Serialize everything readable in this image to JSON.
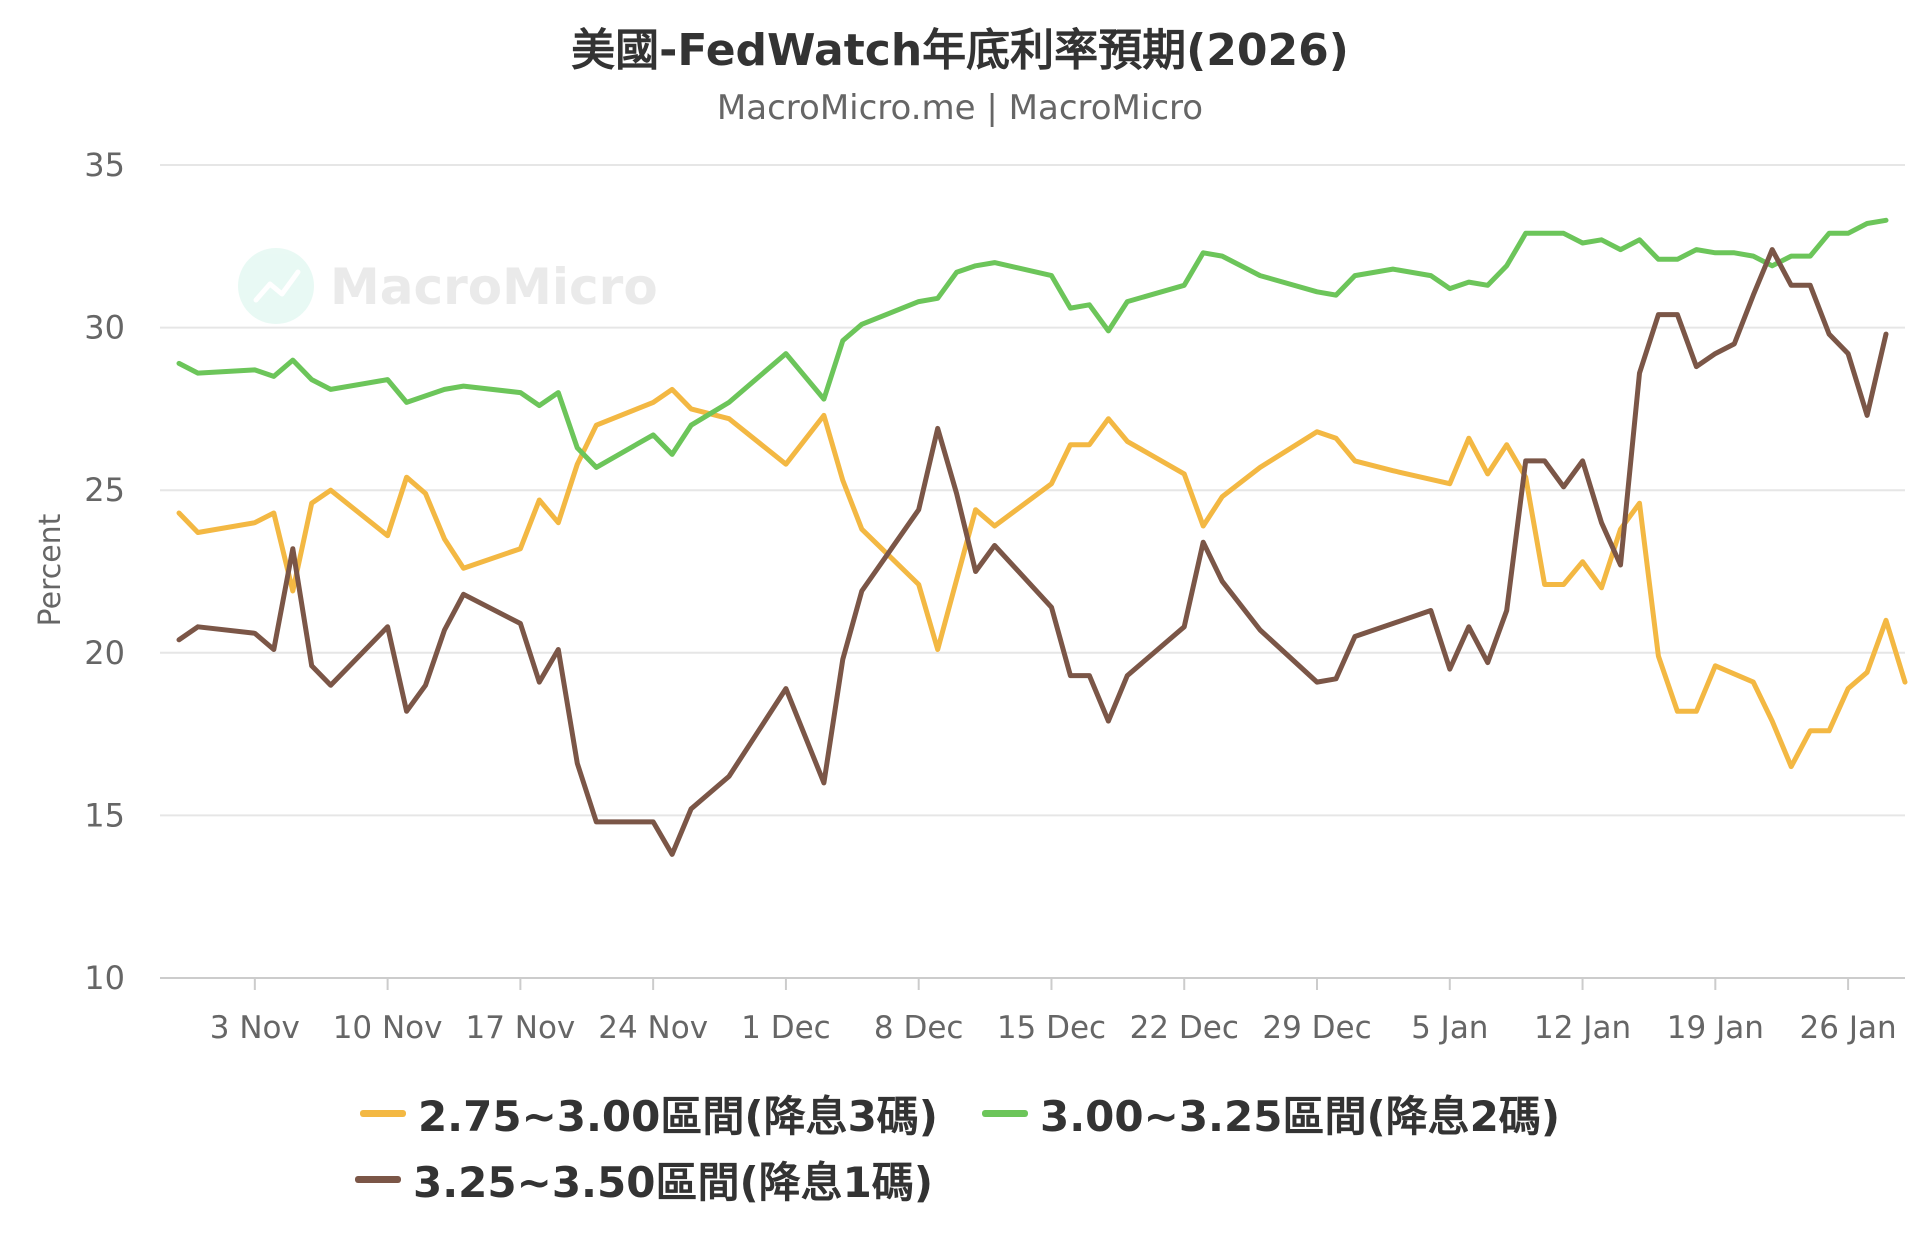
{
  "chart_data": {
    "type": "line",
    "title": "美國-FedWatch年底利率預期(2026)",
    "subtitle": "MacroMicro.me | MacroMicro",
    "watermark": "MacroMicro",
    "ylabel": "Percent",
    "ylim": [
      10,
      35
    ],
    "yticks": [
      10,
      15,
      20,
      25,
      30,
      35
    ],
    "xlim": [
      "2025-10-29",
      "2026-01-29"
    ],
    "xticks": [
      {
        "date": "2025-11-03",
        "label": "3 Nov"
      },
      {
        "date": "2025-11-10",
        "label": "10 Nov"
      },
      {
        "date": "2025-11-17",
        "label": "17 Nov"
      },
      {
        "date": "2025-11-24",
        "label": "24 Nov"
      },
      {
        "date": "2025-12-01",
        "label": "1 Dec"
      },
      {
        "date": "2025-12-08",
        "label": "8 Dec"
      },
      {
        "date": "2025-12-15",
        "label": "15 Dec"
      },
      {
        "date": "2025-12-22",
        "label": "22 Dec"
      },
      {
        "date": "2025-12-29",
        "label": "29 Dec"
      },
      {
        "date": "2026-01-05",
        "label": "5 Jan"
      },
      {
        "date": "2026-01-12",
        "label": "12 Jan"
      },
      {
        "date": "2026-01-19",
        "label": "19 Jan"
      },
      {
        "date": "2026-01-26",
        "label": "26 Jan"
      }
    ],
    "grid": true,
    "legend_position": "bottom",
    "series": [
      {
        "name": "2.75~3.00區間(降息3碼)",
        "color": "#f3b843",
        "points": [
          [
            "2025-10-30",
            24.3
          ],
          [
            "2025-10-31",
            23.7
          ],
          [
            "2025-11-03",
            24.0
          ],
          [
            "2025-11-04",
            24.3
          ],
          [
            "2025-11-05",
            21.9
          ],
          [
            "2025-11-06",
            24.6
          ],
          [
            "2025-11-07",
            25.0
          ],
          [
            "2025-11-10",
            23.6
          ],
          [
            "2025-11-11",
            25.4
          ],
          [
            "2025-11-12",
            24.9
          ],
          [
            "2025-11-13",
            23.5
          ],
          [
            "2025-11-14",
            22.6
          ],
          [
            "2025-11-17",
            23.2
          ],
          [
            "2025-11-18",
            24.7
          ],
          [
            "2025-11-19",
            24.0
          ],
          [
            "2025-11-20",
            25.8
          ],
          [
            "2025-11-21",
            27.0
          ],
          [
            "2025-11-24",
            27.7
          ],
          [
            "2025-11-25",
            28.1
          ],
          [
            "2025-11-26",
            27.5
          ],
          [
            "2025-11-28",
            27.2
          ],
          [
            "2025-12-01",
            25.8
          ],
          [
            "2025-12-03",
            27.3
          ],
          [
            "2025-12-04",
            25.3
          ],
          [
            "2025-12-05",
            23.8
          ],
          [
            "2025-12-08",
            22.1
          ],
          [
            "2025-12-09",
            20.1
          ],
          [
            "2025-12-11",
            24.4
          ],
          [
            "2025-12-12",
            23.9
          ],
          [
            "2025-12-15",
            25.2
          ],
          [
            "2025-12-16",
            26.4
          ],
          [
            "2025-12-17",
            26.4
          ],
          [
            "2025-12-18",
            27.2
          ],
          [
            "2025-12-19",
            26.5
          ],
          [
            "2025-12-22",
            25.5
          ],
          [
            "2025-12-23",
            23.9
          ],
          [
            "2025-12-24",
            24.8
          ],
          [
            "2025-12-26",
            25.7
          ],
          [
            "2025-12-29",
            26.8
          ],
          [
            "2025-12-30",
            26.6
          ],
          [
            "2025-12-31",
            25.9
          ],
          [
            "2026-01-02",
            25.6
          ],
          [
            "2026-01-05",
            25.2
          ],
          [
            "2026-01-06",
            26.6
          ],
          [
            "2026-01-07",
            25.5
          ],
          [
            "2026-01-08",
            26.4
          ],
          [
            "2026-01-09",
            25.4
          ],
          [
            "2026-01-10",
            22.1
          ],
          [
            "2026-01-11",
            22.1
          ],
          [
            "2026-01-12",
            22.8
          ],
          [
            "2026-01-13",
            22.0
          ],
          [
            "2026-01-14",
            23.8
          ],
          [
            "2026-01-15",
            24.6
          ],
          [
            "2026-01-16",
            19.9
          ],
          [
            "2026-01-17",
            18.2
          ],
          [
            "2026-01-18",
            18.2
          ],
          [
            "2026-01-19",
            19.6
          ],
          [
            "2026-01-21",
            19.1
          ],
          [
            "2026-01-22",
            17.9
          ],
          [
            "2026-01-23",
            16.5
          ],
          [
            "2026-01-24",
            17.6
          ],
          [
            "2026-01-25",
            17.6
          ],
          [
            "2026-01-26",
            18.9
          ],
          [
            "2026-01-27",
            19.4
          ],
          [
            "2026-01-28",
            21.0
          ],
          [
            "2026-01-29",
            19.1
          ]
        ]
      },
      {
        "name": "3.00~3.25區間(降息2碼)",
        "color": "#6cc55a",
        "points": [
          [
            "2025-10-30",
            28.9
          ],
          [
            "2025-10-31",
            28.6
          ],
          [
            "2025-11-03",
            28.7
          ],
          [
            "2025-11-04",
            28.5
          ],
          [
            "2025-11-05",
            29.0
          ],
          [
            "2025-11-06",
            28.4
          ],
          [
            "2025-11-07",
            28.1
          ],
          [
            "2025-11-10",
            28.4
          ],
          [
            "2025-11-11",
            27.7
          ],
          [
            "2025-11-12",
            27.9
          ],
          [
            "2025-11-13",
            28.1
          ],
          [
            "2025-11-14",
            28.2
          ],
          [
            "2025-11-17",
            28.0
          ],
          [
            "2025-11-18",
            27.6
          ],
          [
            "2025-11-19",
            28.0
          ],
          [
            "2025-11-20",
            26.3
          ],
          [
            "2025-11-21",
            25.7
          ],
          [
            "2025-11-24",
            26.7
          ],
          [
            "2025-11-25",
            26.1
          ],
          [
            "2025-11-26",
            27.0
          ],
          [
            "2025-11-28",
            27.7
          ],
          [
            "2025-12-01",
            29.2
          ],
          [
            "2025-12-03",
            27.8
          ],
          [
            "2025-12-04",
            29.6
          ],
          [
            "2025-12-05",
            30.1
          ],
          [
            "2025-12-08",
            30.8
          ],
          [
            "2025-12-09",
            30.9
          ],
          [
            "2025-12-10",
            31.7
          ],
          [
            "2025-12-11",
            31.9
          ],
          [
            "2025-12-12",
            32.0
          ],
          [
            "2025-12-15",
            31.6
          ],
          [
            "2025-12-16",
            30.6
          ],
          [
            "2025-12-17",
            30.7
          ],
          [
            "2025-12-18",
            29.9
          ],
          [
            "2025-12-19",
            30.8
          ],
          [
            "2025-12-22",
            31.3
          ],
          [
            "2025-12-23",
            32.3
          ],
          [
            "2025-12-24",
            32.2
          ],
          [
            "2025-12-26",
            31.6
          ],
          [
            "2025-12-29",
            31.1
          ],
          [
            "2025-12-30",
            31.0
          ],
          [
            "2025-12-31",
            31.6
          ],
          [
            "2026-01-02",
            31.8
          ],
          [
            "2026-01-04",
            31.6
          ],
          [
            "2026-01-05",
            31.2
          ],
          [
            "2026-01-06",
            31.4
          ],
          [
            "2026-01-07",
            31.3
          ],
          [
            "2026-01-08",
            31.9
          ],
          [
            "2026-01-09",
            32.9
          ],
          [
            "2026-01-11",
            32.9
          ],
          [
            "2026-01-12",
            32.6
          ],
          [
            "2026-01-13",
            32.7
          ],
          [
            "2026-01-14",
            32.4
          ],
          [
            "2026-01-15",
            32.7
          ],
          [
            "2026-01-16",
            32.1
          ],
          [
            "2026-01-17",
            32.1
          ],
          [
            "2026-01-18",
            32.4
          ],
          [
            "2026-01-19",
            32.3
          ],
          [
            "2026-01-20",
            32.3
          ],
          [
            "2026-01-21",
            32.2
          ],
          [
            "2026-01-22",
            31.9
          ],
          [
            "2026-01-23",
            32.2
          ],
          [
            "2026-01-24",
            32.2
          ],
          [
            "2026-01-25",
            32.9
          ],
          [
            "2026-01-26",
            32.9
          ],
          [
            "2026-01-27",
            33.2
          ],
          [
            "2026-01-28",
            33.3
          ]
        ]
      },
      {
        "name": "3.25~3.50區間(降息1碼)",
        "color": "#7b5647",
        "points": [
          [
            "2025-10-30",
            20.4
          ],
          [
            "2025-10-31",
            20.8
          ],
          [
            "2025-11-03",
            20.6
          ],
          [
            "2025-11-04",
            20.1
          ],
          [
            "2025-11-05",
            23.2
          ],
          [
            "2025-11-06",
            19.6
          ],
          [
            "2025-11-07",
            19.0
          ],
          [
            "2025-11-10",
            20.8
          ],
          [
            "2025-11-11",
            18.2
          ],
          [
            "2025-11-12",
            19.0
          ],
          [
            "2025-11-13",
            20.7
          ],
          [
            "2025-11-14",
            21.8
          ],
          [
            "2025-11-17",
            20.9
          ],
          [
            "2025-11-18",
            19.1
          ],
          [
            "2025-11-19",
            20.1
          ],
          [
            "2025-11-20",
            16.6
          ],
          [
            "2025-11-21",
            14.8
          ],
          [
            "2025-11-24",
            14.8
          ],
          [
            "2025-11-25",
            13.8
          ],
          [
            "2025-11-26",
            15.2
          ],
          [
            "2025-11-28",
            16.2
          ],
          [
            "2025-12-01",
            18.9
          ],
          [
            "2025-12-03",
            16.0
          ],
          [
            "2025-12-04",
            19.8
          ],
          [
            "2025-12-05",
            21.9
          ],
          [
            "2025-12-08",
            24.4
          ],
          [
            "2025-12-09",
            26.9
          ],
          [
            "2025-12-10",
            24.9
          ],
          [
            "2025-12-11",
            22.5
          ],
          [
            "2025-12-12",
            23.3
          ],
          [
            "2025-12-15",
            21.4
          ],
          [
            "2025-12-16",
            19.3
          ],
          [
            "2025-12-17",
            19.3
          ],
          [
            "2025-12-18",
            17.9
          ],
          [
            "2025-12-19",
            19.3
          ],
          [
            "2025-12-22",
            20.8
          ],
          [
            "2025-12-23",
            23.4
          ],
          [
            "2025-12-24",
            22.2
          ],
          [
            "2025-12-26",
            20.7
          ],
          [
            "2025-12-29",
            19.1
          ],
          [
            "2025-12-30",
            19.2
          ],
          [
            "2025-12-31",
            20.5
          ],
          [
            "2026-01-02",
            20.9
          ],
          [
            "2026-01-04",
            21.3
          ],
          [
            "2026-01-05",
            19.5
          ],
          [
            "2026-01-06",
            20.8
          ],
          [
            "2026-01-07",
            19.7
          ],
          [
            "2026-01-08",
            21.3
          ],
          [
            "2026-01-09",
            25.9
          ],
          [
            "2026-01-10",
            25.9
          ],
          [
            "2026-01-11",
            25.1
          ],
          [
            "2026-01-12",
            25.9
          ],
          [
            "2026-01-13",
            24.0
          ],
          [
            "2026-01-14",
            22.7
          ],
          [
            "2026-01-15",
            28.6
          ],
          [
            "2026-01-16",
            30.4
          ],
          [
            "2026-01-17",
            30.4
          ],
          [
            "2026-01-18",
            28.8
          ],
          [
            "2026-01-19",
            29.2
          ],
          [
            "2026-01-20",
            29.5
          ],
          [
            "2026-01-21",
            31.0
          ],
          [
            "2026-01-22",
            32.4
          ],
          [
            "2026-01-23",
            31.3
          ],
          [
            "2026-01-24",
            31.3
          ],
          [
            "2026-01-25",
            29.8
          ],
          [
            "2026-01-26",
            29.2
          ],
          [
            "2026-01-27",
            27.3
          ],
          [
            "2026-01-28",
            29.8
          ]
        ]
      }
    ]
  }
}
